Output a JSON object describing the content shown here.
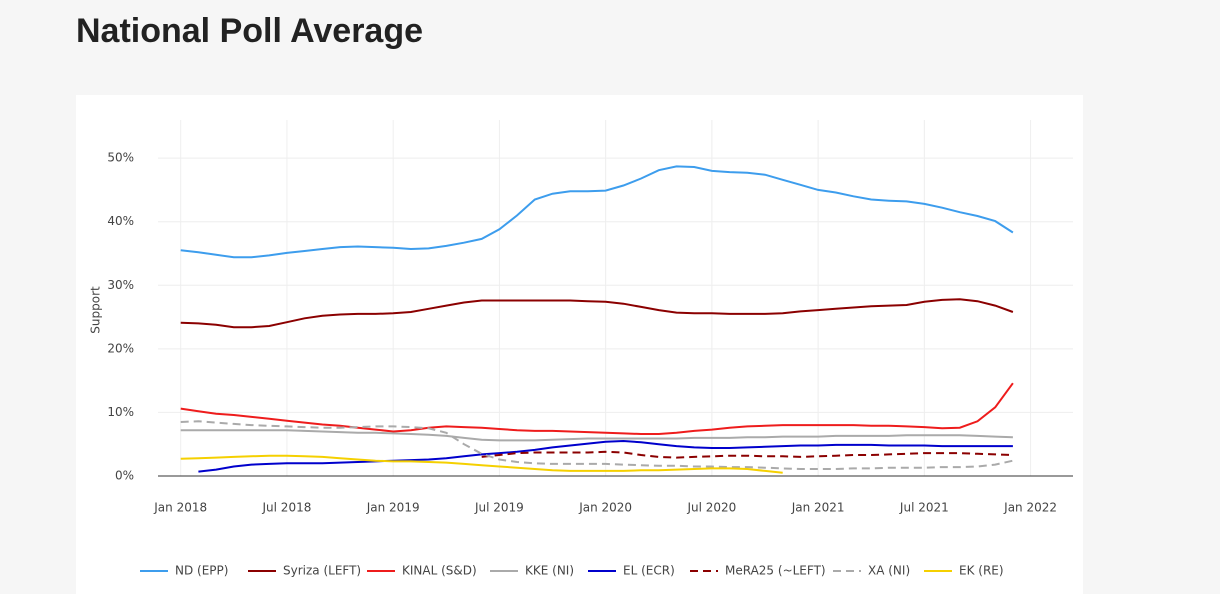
{
  "chart_data": {
    "type": "line",
    "title": "National Poll Average",
    "ylabel": "Support",
    "x": [
      "2018-01",
      "2018-02",
      "2018-03",
      "2018-04",
      "2018-05",
      "2018-06",
      "2018-07",
      "2018-08",
      "2018-09",
      "2018-10",
      "2018-11",
      "2018-12",
      "2019-01",
      "2019-02",
      "2019-03",
      "2019-04",
      "2019-05",
      "2019-06",
      "2019-07",
      "2019-08",
      "2019-09",
      "2019-10",
      "2019-11",
      "2019-12",
      "2020-01",
      "2020-02",
      "2020-03",
      "2020-04",
      "2020-05",
      "2020-06",
      "2020-07",
      "2020-08",
      "2020-09",
      "2020-10",
      "2020-11",
      "2020-12",
      "2021-01",
      "2021-02",
      "2021-03",
      "2021-04",
      "2021-05",
      "2021-06",
      "2021-07",
      "2021-08",
      "2021-09",
      "2021-10",
      "2021-11",
      "2021-12"
    ],
    "xlim": [
      "2017-12",
      "2022-03"
    ],
    "xticks": [
      {
        "value": "2018-01",
        "label": "Jan 2018"
      },
      {
        "value": "2018-07",
        "label": "Jul 2018"
      },
      {
        "value": "2019-01",
        "label": "Jan 2019"
      },
      {
        "value": "2019-07",
        "label": "Jul 2019"
      },
      {
        "value": "2020-01",
        "label": "Jan 2020"
      },
      {
        "value": "2020-07",
        "label": "Jul 2020"
      },
      {
        "value": "2021-01",
        "label": "Jan 2021"
      },
      {
        "value": "2021-07",
        "label": "Jul 2021"
      },
      {
        "value": "2022-01",
        "label": "Jan 2022"
      }
    ],
    "ylim": [
      0,
      56
    ],
    "yticks": [
      {
        "value": 0,
        "label": "0%"
      },
      {
        "value": 10,
        "label": "10%"
      },
      {
        "value": 20,
        "label": "20%"
      },
      {
        "value": 30,
        "label": "30%"
      },
      {
        "value": 40,
        "label": "40%"
      },
      {
        "value": 50,
        "label": "50%"
      }
    ],
    "grid": true,
    "series": [
      {
        "name": "ND (EPP)",
        "color": "#3d9ded",
        "dash": false,
        "values": [
          35.5,
          35.2,
          34.8,
          34.4,
          34.4,
          34.7,
          35.1,
          35.4,
          35.7,
          36.0,
          36.1,
          36.0,
          35.9,
          35.7,
          35.8,
          36.2,
          36.7,
          37.3,
          38.8,
          41.0,
          43.5,
          44.4,
          44.8,
          44.8,
          44.9,
          45.7,
          46.8,
          48.1,
          48.7,
          48.6,
          48.0,
          47.8,
          47.7,
          47.4,
          46.6,
          45.8,
          45.0,
          44.6,
          44.0,
          43.5,
          43.3,
          43.2,
          42.8,
          42.2,
          41.5,
          40.9,
          40.1,
          38.3
        ]
      },
      {
        "name": "Syriza (LEFT)",
        "color": "#8b0000",
        "dash": false,
        "values": [
          24.1,
          24.0,
          23.8,
          23.4,
          23.4,
          23.6,
          24.2,
          24.8,
          25.2,
          25.4,
          25.5,
          25.5,
          25.6,
          25.8,
          26.3,
          26.8,
          27.3,
          27.6,
          27.6,
          27.6,
          27.6,
          27.6,
          27.6,
          27.5,
          27.4,
          27.1,
          26.6,
          26.1,
          25.7,
          25.6,
          25.6,
          25.5,
          25.5,
          25.5,
          25.6,
          25.9,
          26.1,
          26.3,
          26.5,
          26.7,
          26.8,
          26.9,
          27.4,
          27.7,
          27.8,
          27.5,
          26.8,
          25.8
        ]
      },
      {
        "name": "KINAL (S&D)",
        "color": "#ee1c1c",
        "dash": false,
        "values": [
          10.6,
          10.2,
          9.8,
          9.6,
          9.3,
          9.0,
          8.7,
          8.4,
          8.1,
          7.9,
          7.6,
          7.3,
          7.0,
          7.2,
          7.6,
          7.8,
          7.7,
          7.6,
          7.4,
          7.2,
          7.1,
          7.1,
          7.0,
          6.9,
          6.8,
          6.7,
          6.6,
          6.6,
          6.8,
          7.1,
          7.3,
          7.6,
          7.8,
          7.9,
          8.0,
          8.0,
          8.0,
          8.0,
          8.0,
          7.9,
          7.9,
          7.8,
          7.7,
          7.5,
          7.6,
          8.6,
          10.8,
          14.6
        ]
      },
      {
        "name": "KKE (NI)",
        "color": "#aaaaaa",
        "dash": false,
        "values": [
          7.2,
          7.2,
          7.2,
          7.2,
          7.2,
          7.2,
          7.2,
          7.1,
          7.0,
          6.9,
          6.8,
          6.8,
          6.7,
          6.6,
          6.5,
          6.3,
          6.0,
          5.7,
          5.6,
          5.6,
          5.6,
          5.7,
          5.8,
          5.9,
          5.9,
          5.9,
          5.9,
          5.9,
          5.9,
          6.0,
          6.0,
          6.0,
          6.1,
          6.1,
          6.2,
          6.2,
          6.2,
          6.3,
          6.3,
          6.3,
          6.3,
          6.4,
          6.4,
          6.4,
          6.4,
          6.3,
          6.2,
          6.1
        ]
      },
      {
        "name": "EL (ECR)",
        "color": "#0000cc",
        "dash": false,
        "values": [
          null,
          0.7,
          1.0,
          1.5,
          1.8,
          1.9,
          2.0,
          2.0,
          2.0,
          2.1,
          2.2,
          2.3,
          2.4,
          2.5,
          2.6,
          2.8,
          3.1,
          3.4,
          3.6,
          3.8,
          4.1,
          4.5,
          4.8,
          5.1,
          5.4,
          5.5,
          5.3,
          5.0,
          4.7,
          4.5,
          4.4,
          4.4,
          4.5,
          4.6,
          4.7,
          4.8,
          4.8,
          4.9,
          4.9,
          4.9,
          4.8,
          4.8,
          4.8,
          4.7,
          4.7,
          4.7,
          4.7,
          4.7
        ]
      },
      {
        "name": "MeRA25 (~LEFT)",
        "color": "#8b0000",
        "dash": true,
        "values": [
          null,
          null,
          null,
          null,
          null,
          null,
          null,
          null,
          null,
          null,
          null,
          null,
          null,
          null,
          null,
          null,
          null,
          3.0,
          3.3,
          3.6,
          3.7,
          3.7,
          3.7,
          3.7,
          3.8,
          3.7,
          3.3,
          3.0,
          2.9,
          3.0,
          3.1,
          3.2,
          3.2,
          3.1,
          3.1,
          3.0,
          3.1,
          3.2,
          3.3,
          3.3,
          3.4,
          3.5,
          3.6,
          3.6,
          3.6,
          3.5,
          3.4,
          3.3
        ]
      },
      {
        "name": "XA (NI)",
        "color": "#aaaaaa",
        "dash": true,
        "values": [
          8.5,
          8.6,
          8.4,
          8.2,
          8.0,
          7.9,
          7.8,
          7.7,
          7.6,
          7.6,
          7.7,
          7.8,
          7.8,
          7.7,
          7.5,
          6.8,
          5.0,
          3.5,
          2.6,
          2.2,
          2.0,
          1.9,
          1.9,
          1.9,
          1.9,
          1.8,
          1.7,
          1.6,
          1.6,
          1.5,
          1.5,
          1.4,
          1.4,
          1.3,
          1.2,
          1.1,
          1.1,
          1.1,
          1.2,
          1.2,
          1.3,
          1.3,
          1.3,
          1.4,
          1.4,
          1.5,
          1.8,
          2.4
        ]
      },
      {
        "name": "EK (RE)",
        "color": "#f5d000",
        "dash": false,
        "values": [
          2.7,
          2.8,
          2.9,
          3.0,
          3.1,
          3.2,
          3.2,
          3.1,
          3.0,
          2.8,
          2.6,
          2.4,
          2.3,
          2.3,
          2.2,
          2.1,
          1.9,
          1.7,
          1.5,
          1.3,
          1.1,
          0.9,
          0.8,
          0.8,
          0.8,
          0.8,
          0.9,
          0.9,
          1.0,
          1.1,
          1.2,
          1.2,
          1.1,
          0.8,
          0.5,
          null,
          null,
          null,
          null,
          null,
          null,
          null,
          null,
          null,
          null,
          null,
          null,
          null
        ]
      }
    ]
  }
}
